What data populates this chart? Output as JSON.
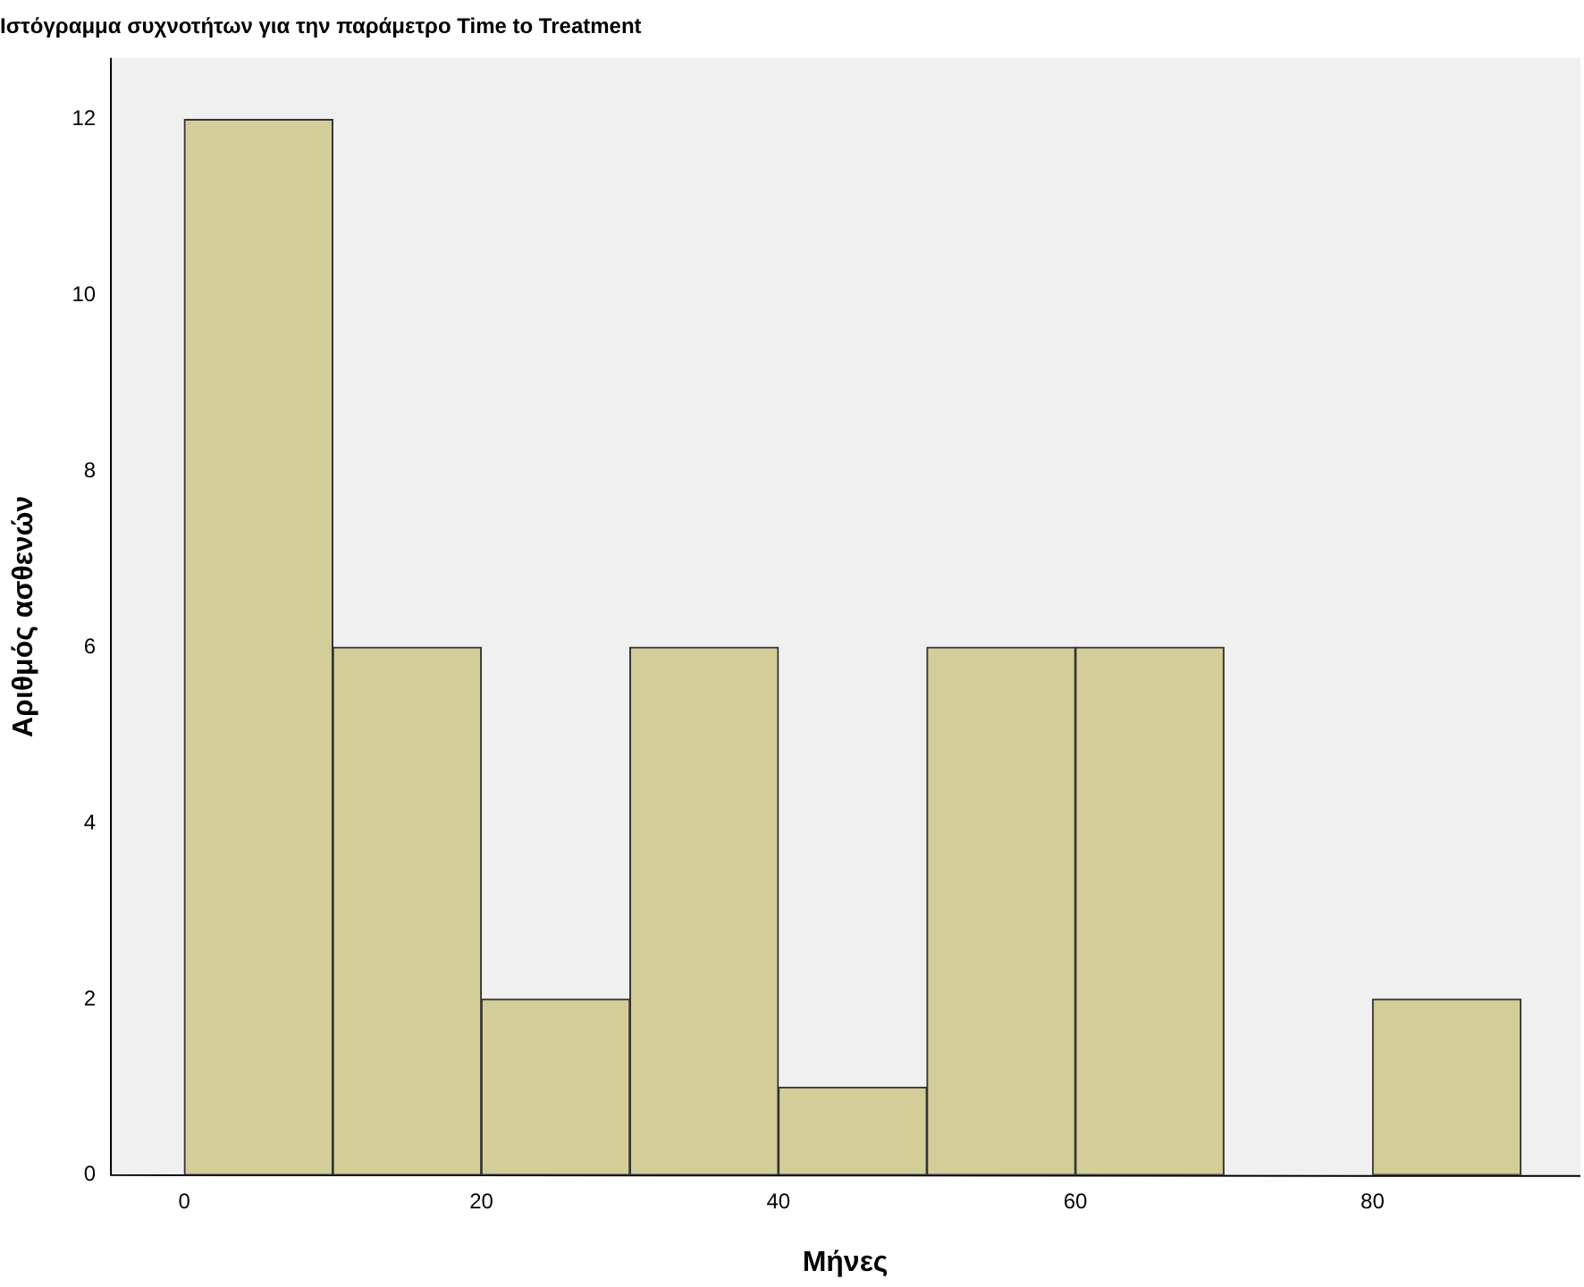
{
  "chart_data": {
    "type": "histogram",
    "title": "Ιστόγραμμα συχνοτήτων για την παράμετρο Time to Treatment",
    "xlabel": "Μήνες",
    "ylabel": "Αριθμός ασθενών",
    "bins": [
      0,
      10,
      20,
      30,
      40,
      50,
      60,
      70,
      80,
      90
    ],
    "values": [
      12,
      6,
      2,
      6,
      1,
      6,
      6,
      0,
      2
    ],
    "color": "#d3ce99",
    "xlim": [
      -5,
      94
    ],
    "xticks": [
      0,
      20,
      40,
      60,
      80
    ],
    "ylim": [
      0,
      12.7
    ],
    "yticks": [
      0,
      2,
      4,
      6,
      8,
      10,
      12
    ],
    "grid": false,
    "legend": false
  }
}
